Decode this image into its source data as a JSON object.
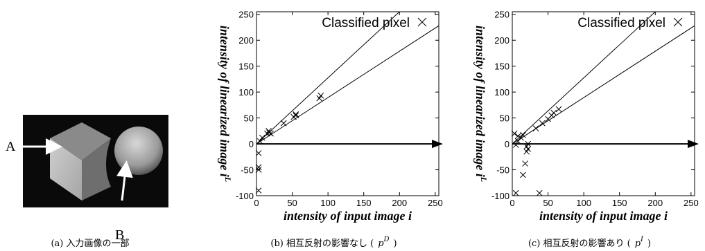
{
  "figure_a": {
    "label_a": "A",
    "label_b": "B",
    "caption": "(a) 入力画像の一部"
  },
  "chart_data": [
    {
      "type": "scatter",
      "legend": "Classified pixel",
      "xlabel": "intensity of input image i",
      "ylabel": "intensity of linearized image i",
      "ylabel_sup": "L",
      "caption": {
        "text": "(b) 相互反射の影響なし (",
        "var": "p",
        "sup": "D",
        "close": ")"
      },
      "x": [
        3,
        3,
        3,
        3,
        5,
        8,
        15,
        17,
        18,
        20,
        38,
        52,
        55,
        55,
        88,
        90
      ],
      "y": [
        -90,
        -50,
        -45,
        -18,
        5,
        12,
        20,
        25,
        22,
        20,
        40,
        52,
        55,
        57,
        88,
        93
      ],
      "lines": [
        {
          "x": [
            0,
            200
          ],
          "y": [
            0,
            255
          ]
        },
        {
          "x": [
            0,
            255
          ],
          "y": [
            0,
            228
          ]
        }
      ],
      "xlim": [
        0,
        255
      ],
      "xticks": [
        0,
        50,
        100,
        150,
        200,
        250
      ],
      "ylim": [
        -100,
        255
      ],
      "yticks": [
        -100,
        -50,
        0,
        50,
        100,
        150,
        200,
        250
      ]
    },
    {
      "type": "scatter",
      "legend": "Classified pixel",
      "xlabel": "intensity of input image i",
      "ylabel": "intensity of linearized image i",
      "ylabel_sup": "L",
      "caption": {
        "text": "(c) 相互反射の影響あり (",
        "var": "p",
        "sup": "I",
        "close": ")"
      },
      "x": [
        5,
        5,
        8,
        8,
        12,
        15,
        20,
        20,
        22,
        22,
        18,
        15,
        38,
        33,
        42,
        50,
        55,
        58,
        65,
        3
      ],
      "y": [
        -95,
        -2,
        5,
        15,
        12,
        17,
        -5,
        -15,
        0,
        -10,
        -38,
        -60,
        -95,
        30,
        40,
        48,
        55,
        60,
        67,
        20
      ],
      "lines": [
        {
          "x": [
            0,
            200
          ],
          "y": [
            0,
            255
          ]
        },
        {
          "x": [
            0,
            255
          ],
          "y": [
            0,
            228
          ]
        }
      ],
      "xlim": [
        0,
        255
      ],
      "xticks": [
        0,
        50,
        100,
        150,
        200,
        250
      ],
      "ylim": [
        -100,
        255
      ],
      "yticks": [
        -100,
        -50,
        0,
        50,
        100,
        150,
        200,
        250
      ]
    }
  ]
}
